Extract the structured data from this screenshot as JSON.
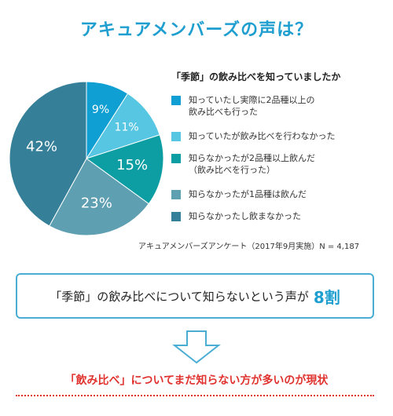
{
  "header": {
    "title": "アキュアメンバーズの声は？"
  },
  "chart_data": {
    "type": "pie",
    "title": "「季節」の飲み比べを知っていましたか",
    "start_angle_deg": 0,
    "direction": "clockwise",
    "slices": [
      {
        "label": "知っていたし実際に2品種以上の\n飲み比べも行った",
        "value": 9,
        "display": "9%",
        "color": "#0f9fd2"
      },
      {
        "label": "知っていたが飲み比べを行わなかった",
        "value": 11,
        "display": "11%",
        "color": "#56c6e2"
      },
      {
        "label": "知らなかったが2品種以上飲んだ\n（飲み比べを行った）",
        "value": 15,
        "display": "15%",
        "color": "#0c9ea3"
      },
      {
        "label": "知らなかったが1品種は飲んだ",
        "value": 23,
        "display": "23%",
        "color": "#5f9fb2"
      },
      {
        "label": "知らなかったし飲まなかった",
        "value": 42,
        "display": "42%",
        "color": "#367f99"
      }
    ]
  },
  "source": {
    "text": "アキュアメンバーズアンケート（2017年9月実施）N = 4,187"
  },
  "callout": {
    "text": "「季節」の飲み比べについて知らないという声が",
    "highlight": "8割"
  },
  "conclusion": {
    "text": "「飲み比べ」についてまだ知らない方が多いのが現状"
  },
  "colors": {
    "background": "#ffffff",
    "title": "#1f9ed0",
    "accent": "#1f9ed0",
    "callout_border": "#4aaed4",
    "arrow_stroke": "#4aaed4",
    "conclusion": "#e0322e",
    "dotted_rule": "#e0322e"
  }
}
